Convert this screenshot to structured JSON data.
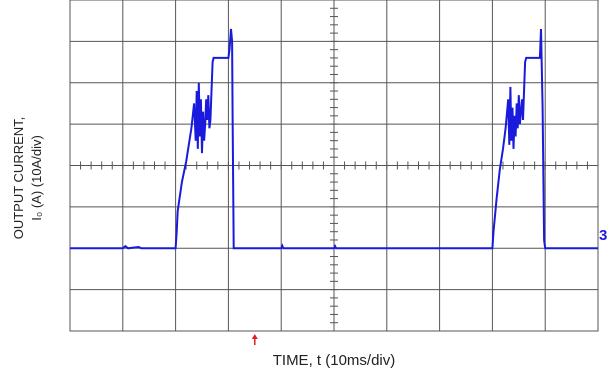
{
  "chart_data": {
    "type": "line",
    "xlabel": "TIME, t (10ms/div)",
    "ylabel_line1": "OUTPUT CURRENT,",
    "ylabel_line2": "I₀ (A) (10A/div)",
    "channel_marker": "3",
    "grid": true,
    "x_divisions": 10,
    "y_divisions": 8,
    "xlim": [
      0,
      10
    ],
    "ylim": [
      -2,
      6
    ],
    "trigger_x": 3.5,
    "trace_color": "#1a1adc",
    "grid_color": "#555555",
    "trigger_color": "#e02020",
    "series": [
      {
        "values_x": [
          0.0,
          1.0,
          1.05,
          1.1,
          1.3,
          1.35,
          1.4,
          2.0,
          2.02,
          2.04,
          2.12,
          2.2,
          2.25,
          2.3,
          2.35,
          2.38,
          2.4,
          2.42,
          2.44,
          2.46,
          2.48,
          2.5,
          2.52,
          2.54,
          2.56,
          2.58,
          2.6,
          2.62,
          2.64,
          2.66,
          2.7,
          2.72,
          3.0,
          3.02,
          3.05,
          3.07,
          3.08,
          3.1,
          4.0,
          4.02,
          4.04,
          4.1,
          5.0,
          5.02,
          5.04,
          5.1,
          8.0,
          8.02,
          8.08,
          8.14,
          8.2,
          8.25,
          8.3,
          8.32,
          8.34,
          8.36,
          8.38,
          8.4,
          8.42,
          8.44,
          8.46,
          8.48,
          8.5,
          8.52,
          8.54,
          8.56,
          8.58,
          8.62,
          8.64,
          8.9,
          8.92,
          8.95,
          8.98,
          9.0,
          10.0
        ],
        "values_y": [
          0.0,
          0.0,
          0.05,
          0.0,
          0.03,
          0.0,
          0.0,
          0.0,
          0.4,
          0.9,
          1.6,
          2.1,
          2.5,
          2.9,
          3.5,
          2.6,
          3.8,
          2.4,
          4.0,
          2.7,
          3.6,
          2.3,
          3.3,
          2.6,
          3.0,
          3.6,
          3.1,
          3.7,
          2.9,
          3.1,
          4.5,
          4.6,
          4.6,
          4.8,
          5.3,
          5.0,
          3.2,
          0.0,
          0.0,
          0.06,
          0.0,
          0.0,
          0.0,
          0.05,
          0.0,
          0.0,
          0.0,
          0.4,
          1.2,
          1.9,
          2.4,
          2.9,
          3.6,
          2.5,
          3.9,
          2.6,
          3.4,
          2.4,
          3.2,
          2.7,
          3.5,
          2.9,
          3.7,
          3.0,
          3.3,
          3.6,
          3.1,
          4.5,
          4.6,
          4.6,
          5.3,
          3.4,
          0.2,
          0.0,
          0.0
        ]
      }
    ]
  }
}
